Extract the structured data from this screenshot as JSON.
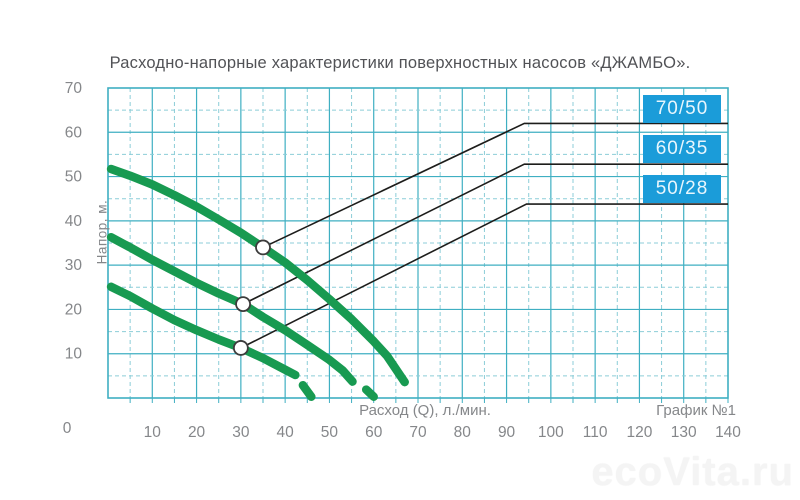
{
  "page": {
    "watermark": "ecoVita.ru"
  },
  "chart_data": {
    "type": "line",
    "title": "Расходно-напорные характеристики поверхностных насосов «ДЖАМБО».",
    "xlabel": "Расход (Q), л./мин.",
    "ylabel": "Напор, м.",
    "note": "График №1",
    "origin_label": "0",
    "xlim": [
      0,
      140
    ],
    "ylim": [
      0,
      70
    ],
    "xticks": [
      0,
      10,
      20,
      30,
      40,
      50,
      60,
      70,
      80,
      90,
      100,
      110,
      120,
      130,
      140
    ],
    "yticks": [
      0,
      10,
      20,
      30,
      40,
      50,
      60,
      70
    ],
    "minor_grid_step": 5,
    "grid": "major solid every 10, minor dashed every 5",
    "legend_position": "inside top-right boxes",
    "series": [
      {
        "name": "70/50",
        "marker": [
          35,
          34
        ],
        "callout": [
          94,
          62
        ],
        "segments": [
          [
            [
              0.7,
              51.7
            ],
            [
              5,
              50.2
            ],
            [
              10,
              48.2
            ],
            [
              15,
              45.8
            ],
            [
              20,
              43.2
            ],
            [
              25,
              40.3
            ],
            [
              30,
              37.3
            ],
            [
              35,
              34
            ],
            [
              40,
              30.6
            ],
            [
              45,
              26.6
            ],
            [
              50,
              22.3
            ],
            [
              55,
              17.8
            ],
            [
              60,
              12.8
            ],
            [
              63,
              9.5
            ],
            [
              67,
              3.6
            ]
          ]
        ]
      },
      {
        "name": "60/35",
        "marker": [
          30.5,
          21.2
        ],
        "callout": [
          94,
          52.8
        ],
        "segments": [
          [
            [
              0.7,
              36.3
            ],
            [
              5,
              34
            ],
            [
              10,
              31.2
            ],
            [
              15,
              28.6
            ],
            [
              20,
              26
            ],
            [
              25,
              23.6
            ],
            [
              30.5,
              21.2
            ],
            [
              35,
              18.3
            ],
            [
              40,
              15.3
            ],
            [
              45,
              12
            ],
            [
              50,
              8.6
            ],
            [
              53,
              6.2
            ],
            [
              55.2,
              3.7
            ]
          ],
          [
            [
              58.3,
              1.9
            ],
            [
              60,
              0.3
            ]
          ]
        ]
      },
      {
        "name": "50/28",
        "marker": [
          30,
          11.3
        ],
        "callout": [
          94.5,
          43.8
        ],
        "segments": [
          [
            [
              0.7,
              25.1
            ],
            [
              5,
              23
            ],
            [
              10,
              20.2
            ],
            [
              15,
              17.6
            ],
            [
              20,
              15.3
            ],
            [
              25,
              13.2
            ],
            [
              30,
              11.3
            ],
            [
              35,
              9
            ],
            [
              40,
              6.4
            ],
            [
              42.3,
              5.2
            ]
          ],
          [
            [
              44,
              2.9
            ],
            [
              45.9,
              0.3
            ]
          ]
        ]
      }
    ],
    "colors": {
      "curve": "#189a51",
      "grid_major": "#3fafc2",
      "grid_minor": "#8ccdd8",
      "border": "#3fafc2",
      "callout": "#1d1d1b",
      "label_box_bg": "#1b9cd9",
      "label_box_text": "#e8f6fd",
      "tick_text": "#85878a",
      "title_text": "#515256"
    }
  }
}
